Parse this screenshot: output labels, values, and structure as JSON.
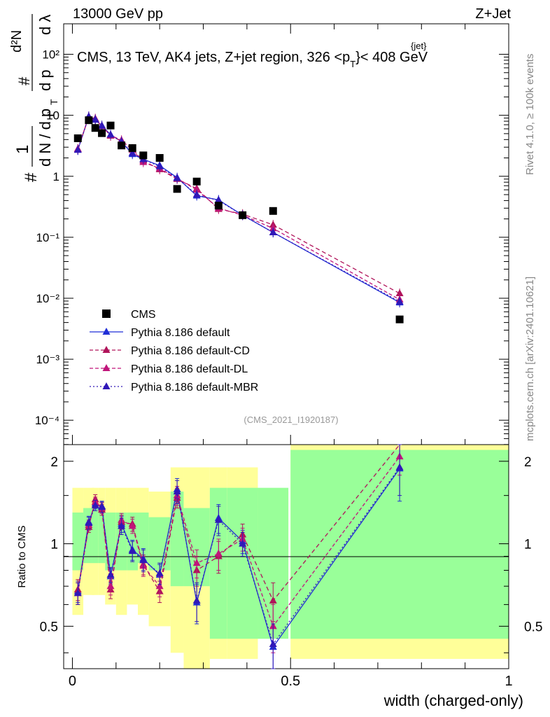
{
  "header": {
    "left": "13000 GeV pp",
    "right": "Z+Jet"
  },
  "side_labels": {
    "rivet": "Rivet 4.1.0, ≥ 100k events",
    "site": "mcplots.cern.ch [arXiv:2401.10621]"
  },
  "chart_data": {
    "type": "line",
    "title": "CMS, 13 TeV, AK4 jets, Z+jet region, 326 <p",
    "title_sup": "{jet}",
    "title_sub": "T",
    "title_tail": "}< 408 GeV",
    "xlabel": "width (charged-only)",
    "ylabel": "1/N dN/d p_T dλ (d²N / d p_T dλ)",
    "ylabel_parts": {
      "hash": "#",
      "one": "1",
      "dN": "d N / d p",
      "hash2": "#",
      "T": "T",
      "d2N": "d²N",
      "dp": "d p",
      "dl": "d λ"
    },
    "ratio_ylabel": "Ratio to CMS",
    "watermark": "(CMS_2021_I1920187)",
    "x_range": [
      -0.02,
      1.0
    ],
    "y_range_log": [
      -4.4,
      2.5
    ],
    "ratio_range": [
      0.35,
      2.3
    ],
    "x_ticks": [
      "0",
      "0.5",
      "1"
    ],
    "x_tick_values": [
      0,
      0.5,
      1
    ],
    "y_tick_labels": [
      "10²",
      "10",
      "1",
      "10⁻¹",
      "10⁻²",
      "10⁻³",
      "10⁻⁴"
    ],
    "y_tick_exponents": [
      2,
      1,
      0,
      -1,
      -2,
      -3,
      -4
    ],
    "ratio_ticks": [
      "0.5",
      "1",
      "2"
    ],
    "ratio_tick_values": [
      0.5,
      1,
      2
    ],
    "legend": [
      {
        "label": "CMS",
        "style": "data"
      },
      {
        "label": "Pythia 8.186 default",
        "style": "solid",
        "color": "#1f2ed6"
      },
      {
        "label": "Pythia 8.186 default-CD",
        "style": "dashed",
        "color": "#b0145a"
      },
      {
        "label": "Pythia 8.186 default-DL",
        "style": "dashed",
        "color": "#c0157a"
      },
      {
        "label": "Pythia 8.186 default-MBR",
        "style": "dotted",
        "color": "#3018b8"
      }
    ],
    "data": {
      "x": [
        0.0125,
        0.0375,
        0.0525,
        0.0675,
        0.0875,
        0.1125,
        0.1375,
        0.1625,
        0.2,
        0.24,
        0.285,
        0.335,
        0.39,
        0.46,
        0.75
      ],
      "xerr": [
        0.0125,
        0.0125,
        0.0075,
        0.0075,
        0.0125,
        0.0125,
        0.0125,
        0.0125,
        0.025,
        0.015,
        0.03,
        0.02,
        0.035,
        0.035,
        0.25
      ],
      "values": [
        4.2,
        8.3,
        6.2,
        5.1,
        6.8,
        3.2,
        2.9,
        2.2,
        2.0,
        0.62,
        0.82,
        0.33,
        0.23,
        0.27,
        0.0045
      ]
    },
    "series": [
      {
        "name": "Pythia 8.186 default",
        "color": "#1f2ed6",
        "dash": "",
        "values": [
          2.7,
          9.6,
          8.4,
          6.8,
          4.8,
          3.7,
          2.3,
          1.9,
          1.5,
          0.95,
          0.48,
          0.41,
          0.23,
          0.12,
          0.0085
        ]
      },
      {
        "name": "Pythia 8.186 default-CD",
        "color": "#b0145a",
        "dash": "6,4",
        "values": [
          2.8,
          9.4,
          8.8,
          6.7,
          4.6,
          3.8,
          2.8,
          1.8,
          1.3,
          0.9,
          0.63,
          0.29,
          0.24,
          0.16,
          0.012
        ]
      },
      {
        "name": "Pythia 8.186 default-DL",
        "color": "#c0157a",
        "dash": "5,3",
        "values": [
          2.8,
          9.5,
          8.6,
          6.6,
          4.7,
          3.9,
          2.7,
          1.7,
          1.35,
          0.92,
          0.6,
          0.3,
          0.23,
          0.14,
          0.0095
        ]
      },
      {
        "name": "Pythia 8.186 default-MBR",
        "color": "#3018b8",
        "dash": "2,3",
        "values": [
          2.7,
          9.5,
          8.5,
          6.7,
          4.8,
          3.7,
          2.4,
          1.9,
          1.45,
          0.93,
          0.5,
          0.4,
          0.23,
          0.12,
          0.0088
        ]
      }
    ],
    "ratio": {
      "band_inner": [
        [
          0.8,
          1.3
        ],
        [
          0.85,
          1.35
        ],
        [
          0.85,
          1.35
        ],
        [
          0.85,
          1.3
        ],
        [
          0.8,
          1.3
        ],
        [
          0.8,
          1.3
        ],
        [
          0.8,
          1.3
        ],
        [
          0.85,
          1.3
        ],
        [
          0.8,
          1.25
        ],
        [
          0.7,
          1.55
        ],
        [
          0.7,
          1.35
        ],
        [
          0.45,
          1.6
        ],
        [
          0.45,
          1.6
        ],
        [
          0.45,
          1.6
        ],
        [
          0.45,
          2.2
        ]
      ],
      "band_outer": [
        [
          0.55,
          1.6
        ],
        [
          0.65,
          1.6
        ],
        [
          0.65,
          1.6
        ],
        [
          0.65,
          1.6
        ],
        [
          0.6,
          1.6
        ],
        [
          0.55,
          1.6
        ],
        [
          0.6,
          1.6
        ],
        [
          0.55,
          1.6
        ],
        [
          0.5,
          1.55
        ],
        [
          0.4,
          1.9
        ],
        [
          0.35,
          1.9
        ],
        [
          0.38,
          1.9
        ],
        [
          0.38,
          1.9
        ],
        [
          0.65,
          1.55
        ],
        [
          0.38,
          2.3
        ]
      ],
      "series": [
        {
          "name": "Pythia 8.186 default",
          "color": "#1f2ed6",
          "dash": "",
          "values": [
            0.67,
            1.2,
            1.4,
            1.37,
            0.76,
            1.18,
            0.95,
            0.88,
            0.77,
            1.58,
            0.61,
            1.24,
            1.02,
            0.42,
            1.88
          ],
          "err": [
            0.06,
            0.06,
            0.06,
            0.06,
            0.05,
            0.08,
            0.08,
            0.08,
            0.07,
            0.15,
            0.1,
            0.15,
            0.1,
            0.08,
            0.45
          ]
        },
        {
          "name": "Pythia 8.186 default-CD",
          "color": "#b0145a",
          "dash": "6,4",
          "values": [
            0.68,
            1.15,
            1.45,
            1.33,
            0.68,
            1.2,
            1.18,
            0.84,
            0.67,
            1.47,
            0.8,
            0.9,
            1.08,
            0.62,
            2.7
          ],
          "err": [
            0.06,
            0.05,
            0.06,
            0.06,
            0.05,
            0.07,
            0.07,
            0.07,
            0.06,
            0.12,
            0.1,
            0.12,
            0.1,
            0.1,
            0.3
          ]
        },
        {
          "name": "Pythia 8.186 default-DL",
          "color": "#c0157a",
          "dash": "5,3",
          "values": [
            0.66,
            1.17,
            1.42,
            1.35,
            0.7,
            1.22,
            1.16,
            0.83,
            0.7,
            1.5,
            0.85,
            0.92,
            1.04,
            0.5,
            2.08
          ],
          "err": [
            0.06,
            0.05,
            0.06,
            0.06,
            0.05,
            0.07,
            0.07,
            0.07,
            0.06,
            0.12,
            0.1,
            0.12,
            0.1,
            0.1,
            0.3
          ]
        },
        {
          "name": "Pythia 8.186 default-MBR",
          "color": "#3018b8",
          "dash": "2,3",
          "values": [
            0.66,
            1.19,
            1.38,
            1.36,
            0.77,
            1.16,
            0.94,
            0.87,
            0.78,
            1.55,
            0.62,
            1.22,
            1.0,
            0.43,
            1.9
          ],
          "err": [
            0.06,
            0.06,
            0.06,
            0.06,
            0.05,
            0.08,
            0.08,
            0.08,
            0.07,
            0.15,
            0.1,
            0.15,
            0.1,
            0.08,
            0.4
          ]
        }
      ]
    }
  }
}
